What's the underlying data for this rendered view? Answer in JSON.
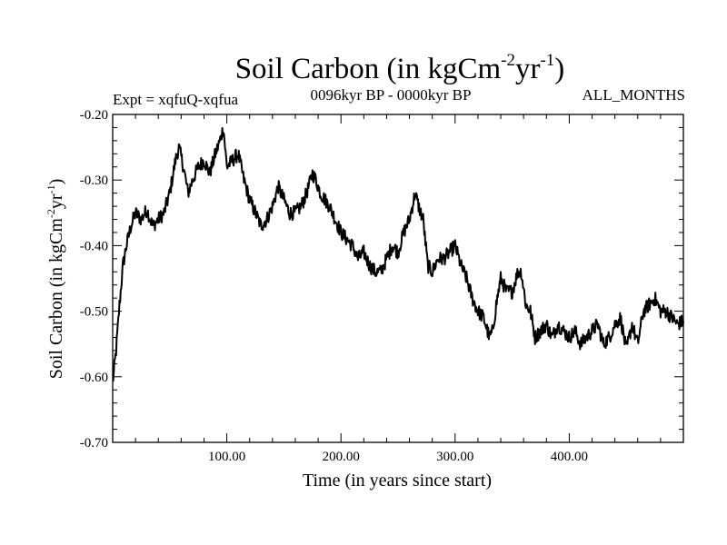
{
  "header": {
    "title_main": "Soil Carbon (in kgCm",
    "title_exp1": "-2",
    "title_mid": "yr",
    "title_exp2": "-1",
    "title_end": ")",
    "expt_label": "Expt = xqfuQ-xqfua",
    "period_label": "0096kyr BP - 0000kyr BP",
    "months_label": "ALL_MONTHS"
  },
  "chart_data": {
    "type": "line",
    "title": "Soil Carbon (in kgCm-2yr-1)",
    "xlabel": "Time (in years since start)",
    "ylabel": "Soil Carbon (in kgCm-2yr-1)",
    "ylabel_parts": {
      "main": "Soil Carbon (in kgCm",
      "exp1": "-2",
      "mid": "yr",
      "exp2": "-1",
      "end": ")"
    },
    "xlim": [
      0,
      500
    ],
    "ylim": [
      -0.7,
      -0.2
    ],
    "x_ticks": [
      100,
      200,
      300,
      400
    ],
    "x_tick_labels": [
      "100.00",
      "200.00",
      "300.00",
      "400.00"
    ],
    "y_ticks": [
      -0.7,
      -0.6,
      -0.5,
      -0.4,
      -0.3,
      -0.2
    ],
    "y_tick_labels": [
      "-0.70",
      "-0.60",
      "-0.50",
      "-0.40",
      "-0.30",
      "-0.20"
    ],
    "series": [
      {
        "name": "xqfuQ-xqfua",
        "x": [
          0,
          3,
          6,
          9,
          12,
          16,
          20,
          25,
          30,
          35,
          40,
          45,
          50,
          55,
          58,
          62,
          66,
          70,
          75,
          80,
          85,
          90,
          94,
          97,
          100,
          105,
          110,
          115,
          120,
          125,
          130,
          135,
          140,
          145,
          150,
          155,
          160,
          165,
          170,
          175,
          178,
          182,
          186,
          190,
          195,
          200,
          205,
          210,
          215,
          220,
          225,
          230,
          235,
          240,
          245,
          250,
          255,
          260,
          265,
          268,
          272,
          276,
          280,
          285,
          290,
          295,
          300,
          305,
          310,
          315,
          320,
          325,
          330,
          333,
          336,
          340,
          345,
          350,
          355,
          358,
          362,
          366,
          370,
          375,
          380,
          385,
          390,
          395,
          400,
          405,
          410,
          415,
          420,
          425,
          430,
          435,
          440,
          445,
          450,
          455,
          460,
          465,
          470,
          475,
          480,
          485,
          490,
          495,
          500
        ],
        "values": [
          -0.61,
          -0.56,
          -0.49,
          -0.43,
          -0.4,
          -0.37,
          -0.35,
          -0.36,
          -0.345,
          -0.37,
          -0.36,
          -0.35,
          -0.32,
          -0.27,
          -0.25,
          -0.28,
          -0.32,
          -0.3,
          -0.28,
          -0.27,
          -0.29,
          -0.26,
          -0.24,
          -0.22,
          -0.28,
          -0.27,
          -0.26,
          -0.3,
          -0.33,
          -0.35,
          -0.37,
          -0.36,
          -0.34,
          -0.31,
          -0.33,
          -0.35,
          -0.35,
          -0.34,
          -0.32,
          -0.29,
          -0.3,
          -0.32,
          -0.33,
          -0.34,
          -0.36,
          -0.38,
          -0.39,
          -0.4,
          -0.42,
          -0.41,
          -0.43,
          -0.44,
          -0.44,
          -0.42,
          -0.4,
          -0.41,
          -0.38,
          -0.36,
          -0.32,
          -0.34,
          -0.36,
          -0.43,
          -0.44,
          -0.42,
          -0.42,
          -0.41,
          -0.4,
          -0.43,
          -0.45,
          -0.48,
          -0.5,
          -0.51,
          -0.54,
          -0.53,
          -0.49,
          -0.45,
          -0.47,
          -0.47,
          -0.44,
          -0.44,
          -0.49,
          -0.5,
          -0.54,
          -0.53,
          -0.52,
          -0.54,
          -0.52,
          -0.53,
          -0.54,
          -0.53,
          -0.55,
          -0.54,
          -0.53,
          -0.52,
          -0.55,
          -0.54,
          -0.52,
          -0.51,
          -0.56,
          -0.52,
          -0.55,
          -0.5,
          -0.49,
          -0.48,
          -0.5,
          -0.5,
          -0.51,
          -0.52,
          -0.515
        ],
        "color": "#000000"
      }
    ]
  }
}
